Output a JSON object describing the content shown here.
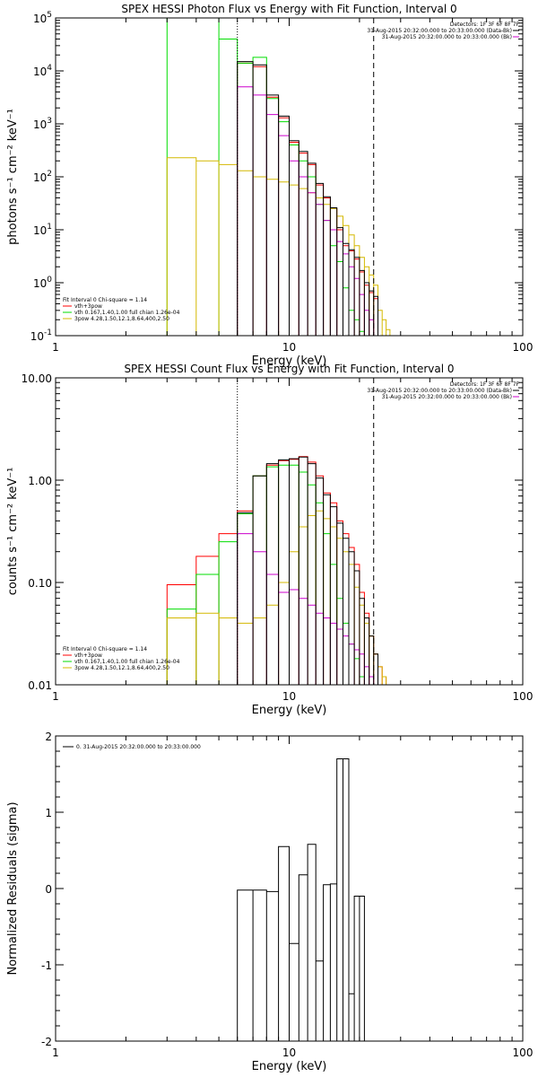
{
  "chart_data": [
    {
      "type": "line",
      "title": "SPEX HESSI Photon Flux vs Energy with Fit Function, Interval 0",
      "xlabel": "Energy (keV)",
      "ylabel": "photons s⁻¹ cm⁻² keV⁻¹",
      "xscale": "log",
      "yscale": "log",
      "xlim": [
        1,
        100
      ],
      "ylim": [
        0.1,
        100000
      ],
      "xticks": [
        {
          "v": 1,
          "label": "1"
        },
        {
          "v": 10,
          "label": "10"
        },
        {
          "v": 100,
          "label": "100"
        }
      ],
      "yticks": [
        {
          "v": 0.1,
          "base": "10",
          "exp": "-1"
        },
        {
          "v": 1,
          "base": "10",
          "exp": "0"
        },
        {
          "v": 10,
          "base": "10",
          "exp": "1"
        },
        {
          "v": 100,
          "base": "10",
          "exp": "2"
        },
        {
          "v": 1000,
          "base": "10",
          "exp": "3"
        },
        {
          "v": 10000,
          "base": "10",
          "exp": "4"
        },
        {
          "v": 100000,
          "base": "10",
          "exp": "5"
        }
      ],
      "vlines": [
        {
          "x": 6,
          "style": "dotted"
        },
        {
          "x": 23,
          "style": "dashed"
        }
      ],
      "header_lines": [
        "Detectors: 1F 3F 6F 8F 7F",
        "31-Aug-2015 20:32:00.000 to 20:33:00.000 (Data-Bk)",
        "31-Aug-2015 20:32:00.000 to 20:33:00.000 (Bk)"
      ],
      "header_swatch": "#cc00cc",
      "legend": {
        "header": "Fit Interval 0    Chi-square = 1.14",
        "entries": [
          {
            "label": "vth+3pow",
            "color": "#ff0000"
          },
          {
            "label": "vth 0.167,1.40,1.00  full chian 1.26e-04",
            "color": "#00dd00"
          },
          {
            "label": "3pow 4.28,1.50,12.1,8.64,400,2.50",
            "color": "#d4b800"
          }
        ]
      },
      "series": [
        {
          "name": "vth+3pow",
          "color": "#ff0000",
          "x": [
            6,
            7,
            8,
            9,
            10,
            11,
            12,
            13,
            14,
            15,
            16,
            17,
            18,
            19,
            20,
            21,
            22,
            23
          ],
          "y": [
            14000,
            12000,
            3200,
            1300,
            450,
            280,
            170,
            70,
            40,
            25,
            10,
            5,
            4,
            2.8,
            1.6,
            0.9,
            0.65,
            0.5
          ]
        },
        {
          "name": "vth",
          "color": "#00dd00",
          "x": [
            3,
            5,
            6,
            7,
            8,
            9,
            10,
            11,
            12,
            13,
            14,
            15,
            16,
            17,
            18,
            19,
            20,
            21,
            22,
            23
          ],
          "y": [
            100000,
            40000,
            14000,
            18000,
            3000,
            1100,
            400,
            200,
            100,
            30,
            15,
            5,
            2.5,
            0.8,
            0.3,
            0.2,
            0.12,
            0.1,
            0.1,
            0.1
          ]
        },
        {
          "name": "3pow",
          "color": "#d4b800",
          "x": [
            3,
            4,
            5,
            6,
            7,
            8,
            9,
            10,
            11,
            12,
            13,
            14,
            15,
            16,
            17,
            18,
            19,
            20,
            21,
            22,
            23,
            24,
            25,
            26,
            27
          ],
          "y": [
            230,
            200,
            170,
            130,
            100,
            90,
            80,
            70,
            60,
            50,
            40,
            30,
            25,
            18,
            12,
            8,
            5,
            3,
            2,
            1.4,
            0.9,
            0.3,
            0.2,
            0.13,
            0.1
          ]
        },
        {
          "name": "Bk",
          "color": "#cc00cc",
          "x": [
            6,
            7,
            8,
            9,
            10,
            11,
            12,
            13,
            14,
            15,
            16,
            17,
            18,
            19,
            20,
            21,
            22,
            23
          ],
          "y": [
            5000,
            3500,
            1500,
            600,
            200,
            100,
            50,
            30,
            15,
            10,
            6,
            3.5,
            2,
            1.2,
            0.6,
            0.3,
            0.2,
            0.1
          ]
        }
      ],
      "data_series": {
        "name": "Data-Bk",
        "color": "#000000",
        "x": [
          6,
          7,
          8,
          9,
          10,
          11,
          12,
          13,
          14,
          15,
          16,
          17,
          18,
          19,
          20,
          21,
          22,
          23
        ],
        "y": [
          15000,
          13000,
          3500,
          1400,
          480,
          300,
          180,
          75,
          42,
          26,
          11,
          5.5,
          4.2,
          3,
          1.7,
          1,
          0.7,
          0.55
        ]
      }
    },
    {
      "type": "line",
      "title": "SPEX HESSI Count Flux vs Energy with Fit Function, Interval 0",
      "xlabel": "Energy (keV)",
      "ylabel": "counts s⁻¹ cm⁻² keV⁻¹",
      "xscale": "log",
      "yscale": "log",
      "xlim": [
        1,
        100
      ],
      "ylim": [
        0.01,
        10
      ],
      "xticks": [
        {
          "v": 1,
          "label": "1"
        },
        {
          "v": 10,
          "label": "10"
        },
        {
          "v": 100,
          "label": "100"
        }
      ],
      "yticks": [
        {
          "v": 0.01,
          "label": "0.01"
        },
        {
          "v": 0.1,
          "label": "0.10"
        },
        {
          "v": 1,
          "label": "1.00"
        },
        {
          "v": 10,
          "label": "10.00"
        }
      ],
      "vlines": [
        {
          "x": 6,
          "style": "dotted"
        },
        {
          "x": 23,
          "style": "dashed"
        }
      ],
      "header_lines": [
        "Detectors: 1F 3F 6F 8F 7F",
        "31-Aug-2015 20:32:00.000 to 20:33:00.000 (Data-Bk)",
        "31-Aug-2015 20:32:00.000 to 20:33:00.000 (Bk)"
      ],
      "header_swatch": "#cc00cc",
      "legend": {
        "header": "Fit Interval 0    Chi-square = 1.14",
        "entries": [
          {
            "label": "vth+3pow",
            "color": "#ff0000"
          },
          {
            "label": "vth 0.167,1.40,1.00  full chian 1.26e-04",
            "color": "#00dd00"
          },
          {
            "label": "3pow 4.28,1.50,12.1,8.64,400,2.50",
            "color": "#d4b800"
          }
        ]
      },
      "series": [
        {
          "name": "vth+3pow",
          "color": "#ff0000",
          "x": [
            3,
            4,
            5,
            6,
            7,
            8,
            9,
            10,
            11,
            12,
            13,
            14,
            15,
            16,
            17,
            18,
            19,
            20,
            21,
            22,
            23,
            24,
            25
          ],
          "y": [
            0.095,
            0.18,
            0.3,
            0.5,
            1.1,
            1.4,
            1.55,
            1.6,
            1.7,
            1.5,
            1.1,
            0.75,
            0.6,
            0.4,
            0.3,
            0.22,
            0.15,
            0.08,
            0.05,
            0.03,
            0.02,
            0.015,
            0.012
          ]
        },
        {
          "name": "vth",
          "color": "#00dd00",
          "x": [
            3,
            4,
            5,
            6,
            7,
            8,
            9,
            10,
            11,
            12,
            13,
            14,
            15,
            16,
            17,
            18,
            19,
            20,
            21,
            22,
            23
          ],
          "y": [
            0.055,
            0.12,
            0.25,
            0.47,
            1.1,
            1.35,
            1.4,
            1.4,
            1.2,
            0.9,
            0.6,
            0.3,
            0.15,
            0.07,
            0.04,
            0.025,
            0.018,
            0.012,
            0.01,
            0.01,
            0.01
          ]
        },
        {
          "name": "3pow",
          "color": "#d4b800",
          "x": [
            3,
            4,
            5,
            6,
            7,
            8,
            9,
            10,
            11,
            12,
            13,
            14,
            15,
            16,
            17,
            18,
            19,
            20,
            21,
            22,
            23,
            24,
            25,
            26,
            27
          ],
          "y": [
            0.045,
            0.05,
            0.045,
            0.04,
            0.045,
            0.06,
            0.1,
            0.2,
            0.35,
            0.45,
            0.5,
            0.42,
            0.35,
            0.27,
            0.2,
            0.15,
            0.09,
            0.06,
            0.04,
            0.03,
            0.02,
            0.015,
            0.012,
            0.01,
            0.01
          ]
        },
        {
          "name": "Bk",
          "color": "#cc00cc",
          "x": [
            6,
            7,
            8,
            9,
            10,
            11,
            12,
            13,
            14,
            15,
            16,
            17,
            18,
            19,
            20,
            21,
            22,
            23
          ],
          "y": [
            0.3,
            0.2,
            0.12,
            0.08,
            0.085,
            0.07,
            0.06,
            0.05,
            0.045,
            0.04,
            0.035,
            0.03,
            0.025,
            0.022,
            0.02,
            0.015,
            0.012,
            0.01
          ]
        }
      ],
      "data_series": {
        "name": "Data-Bk",
        "color": "#000000",
        "x": [
          6,
          7,
          8,
          9,
          10,
          11,
          12,
          13,
          14,
          15,
          16,
          17,
          18,
          19,
          20,
          21,
          22,
          23
        ],
        "y": [
          0.48,
          1.1,
          1.45,
          1.58,
          1.62,
          1.68,
          1.45,
          1.05,
          0.72,
          0.55,
          0.38,
          0.27,
          0.2,
          0.13,
          0.07,
          0.045,
          0.03,
          0.02
        ]
      }
    },
    {
      "type": "line",
      "title": "",
      "xlabel": "Energy (keV)",
      "ylabel": "Normalized Residuals (sigma)",
      "xscale": "log",
      "yscale": "linear",
      "xlim": [
        1,
        100
      ],
      "ylim": [
        -2,
        2
      ],
      "xticks": [
        {
          "v": 1,
          "label": "1"
        },
        {
          "v": 10,
          "label": "10"
        },
        {
          "v": 100,
          "label": "100"
        }
      ],
      "yticks": [
        {
          "v": -2,
          "label": "-2"
        },
        {
          "v": -1,
          "label": "-1"
        },
        {
          "v": 0,
          "label": "0"
        },
        {
          "v": 1,
          "label": "1"
        },
        {
          "v": 2,
          "label": "2"
        }
      ],
      "legend": {
        "entries": [
          {
            "label": "0. 31-Aug-2015 20:32:00.000 to 20:33:00.000",
            "color": "#000000"
          }
        ]
      },
      "series": [
        {
          "name": "0. 31-Aug-2015 20:32:00.000 to 20:33:00.000",
          "color": "#000000",
          "x": [
            6,
            7,
            8,
            9,
            10,
            11,
            12,
            13,
            14,
            15,
            16,
            17,
            18,
            19,
            20,
            21,
            22,
            23
          ],
          "y": [
            -0.02,
            -0.02,
            -0.04,
            0.55,
            -0.72,
            0.18,
            0.58,
            -0.95,
            0.05,
            0.06,
            1.7,
            1.7,
            -1.38,
            -0.1,
            -0.1,
            -2,
            -2,
            -2
          ]
        }
      ]
    }
  ]
}
